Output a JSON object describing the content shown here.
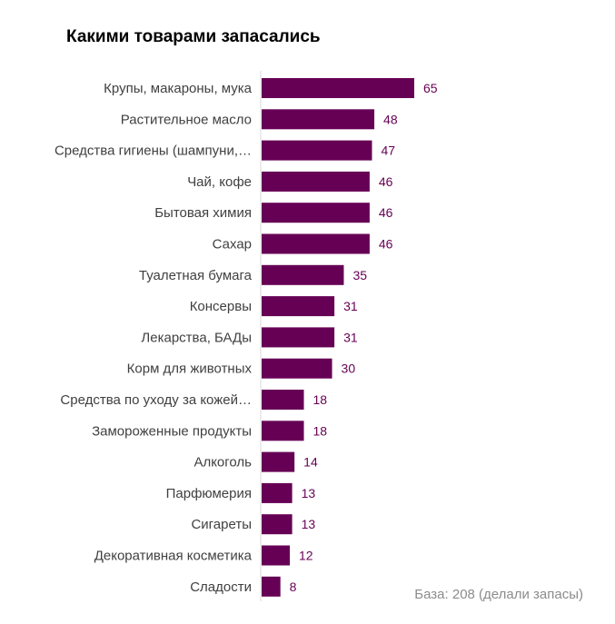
{
  "chart_data": {
    "type": "bar",
    "orientation": "horizontal",
    "title": "Какими товарами запасались",
    "categories": [
      "Крупы, макароны, мука",
      "Растительное масло",
      "Средства гигиены (шампуни,…",
      "Чай, кофе",
      "Бытовая химия",
      "Сахар",
      "Туалетная бумага",
      "Консервы",
      "Лекарства, БАДы",
      "Корм для  животных",
      "Средства по уходу за кожей…",
      "Замороженные продукты",
      "Алкоголь",
      "Парфюмерия",
      "Сигареты",
      "Декоративная косметика",
      "Сладости"
    ],
    "values": [
      65,
      48,
      47,
      46,
      46,
      46,
      35,
      31,
      31,
      30,
      18,
      18,
      14,
      13,
      13,
      12,
      8
    ],
    "xlim": [
      0,
      100
    ],
    "grid": false,
    "bar_color": "#660055",
    "label_color": "#660055",
    "note": "База: 208 (делали запасы)"
  }
}
